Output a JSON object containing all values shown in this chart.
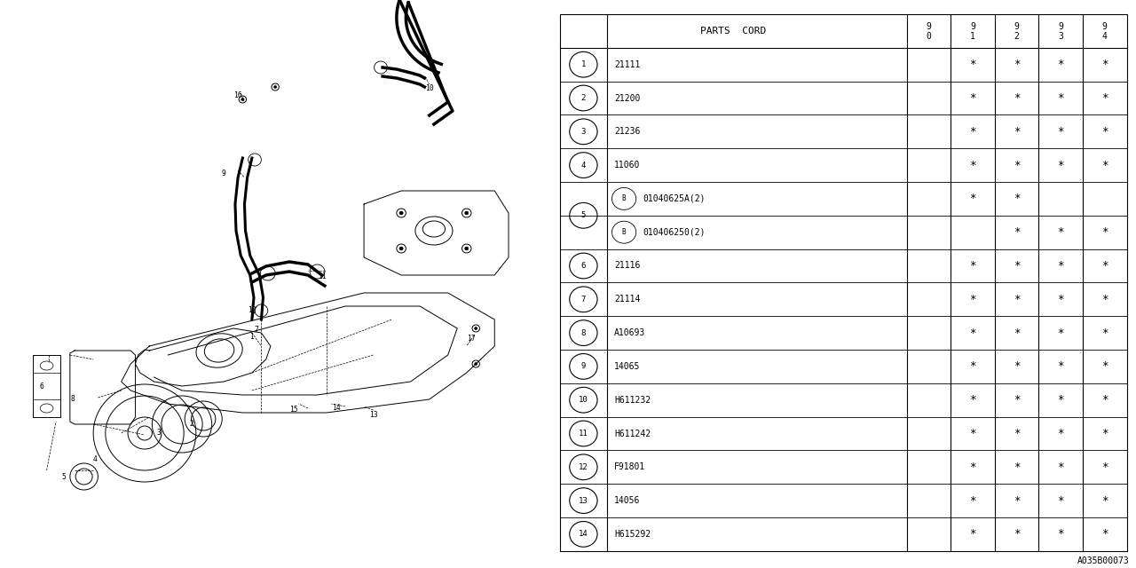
{
  "background_color": "#ffffff",
  "diagram_id": "A035B00073",
  "line_color": "#000000",
  "table": {
    "rows": [
      {
        "num": "1",
        "code": "21111",
        "marks": [
          false,
          true,
          true,
          true,
          true
        ]
      },
      {
        "num": "2",
        "code": "21200",
        "marks": [
          false,
          true,
          true,
          true,
          true
        ]
      },
      {
        "num": "3",
        "code": "21236",
        "marks": [
          false,
          true,
          true,
          true,
          true
        ]
      },
      {
        "num": "4",
        "code": "11060",
        "marks": [
          false,
          true,
          true,
          true,
          true
        ]
      },
      {
        "num": "5a",
        "code": "B 01040625A(2)",
        "marks": [
          false,
          true,
          true,
          false,
          false
        ]
      },
      {
        "num": "5b",
        "code": "B 010406250(2)",
        "marks": [
          false,
          false,
          true,
          true,
          true
        ]
      },
      {
        "num": "6",
        "code": "21116",
        "marks": [
          false,
          true,
          true,
          true,
          true
        ]
      },
      {
        "num": "7",
        "code": "21114",
        "marks": [
          false,
          true,
          true,
          true,
          true
        ]
      },
      {
        "num": "8",
        "code": "A10693",
        "marks": [
          false,
          true,
          true,
          true,
          true
        ]
      },
      {
        "num": "9",
        "code": "14065",
        "marks": [
          false,
          true,
          true,
          true,
          true
        ]
      },
      {
        "num": "10",
        "code": "H611232",
        "marks": [
          false,
          true,
          true,
          true,
          true
        ]
      },
      {
        "num": "11",
        "code": "H611242",
        "marks": [
          false,
          true,
          true,
          true,
          true
        ]
      },
      {
        "num": "12",
        "code": "F91801",
        "marks": [
          false,
          true,
          true,
          true,
          true
        ]
      },
      {
        "num": "13",
        "code": "14056",
        "marks": [
          false,
          true,
          true,
          true,
          true
        ]
      },
      {
        "num": "14",
        "code": "H615292",
        "marks": [
          false,
          true,
          true,
          true,
          true
        ]
      }
    ]
  }
}
